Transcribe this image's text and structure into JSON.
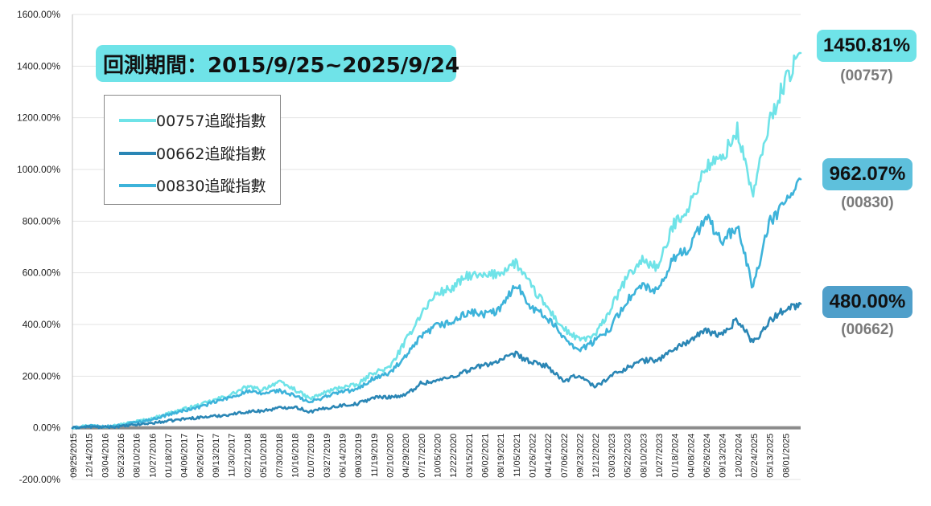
{
  "chart_data": {
    "type": "line",
    "title": "回測期間：2015/9/25~2025/9/24",
    "xlabel": "",
    "ylabel": "",
    "ylim": [
      -200,
      1600
    ],
    "yticks": [
      -200,
      0,
      200,
      400,
      600,
      800,
      1000,
      1200,
      1400,
      1600
    ],
    "ytick_labels": [
      "-200.00%",
      "0.00%",
      "200.00%",
      "400.00%",
      "600.00%",
      "800.00%",
      "1000.00%",
      "1200.00%",
      "1400.00%",
      "1600.00%"
    ],
    "categories": [
      "09/25/2015",
      "12/14/2015",
      "03/04/2016",
      "05/23/2016",
      "08/10/2016",
      "10/27/2016",
      "01/18/2017",
      "04/06/2017",
      "06/26/2017",
      "09/13/2017",
      "11/30/2017",
      "02/21/2018",
      "05/10/2018",
      "07/30/2018",
      "10/16/2018",
      "01/07/2019",
      "03/27/2019",
      "06/14/2019",
      "09/03/2019",
      "11/19/2019",
      "02/10/2020",
      "04/29/2020",
      "07/17/2020",
      "10/05/2020",
      "12/22/2020",
      "03/15/2021",
      "06/02/2021",
      "08/19/2021",
      "11/05/2021",
      "01/26/2022",
      "04/14/2022",
      "07/06/2022",
      "09/23/2022",
      "12/12/2022",
      "03/03/2023",
      "05/22/2023",
      "08/10/2023",
      "10/27/2023",
      "01/18/2024",
      "04/08/2024",
      "06/26/2024",
      "09/13/2024",
      "12/02/2024",
      "02/24/2025",
      "05/13/2025",
      "08/01/2025"
    ],
    "series": [
      {
        "name": "00757追蹤指數",
        "color": "#6fe3e8",
        "values": [
          0,
          10,
          5,
          12,
          25,
          35,
          55,
          72,
          88,
          108,
          128,
          158,
          148,
          178,
          150,
          112,
          138,
          158,
          165,
          215,
          230,
          330,
          440,
          520,
          540,
          590,
          585,
          600,
          640,
          545,
          465,
          385,
          340,
          355,
          460,
          580,
          650,
          620,
          790,
          860,
          1010,
          1040,
          1150,
          900,
          1180,
          1340
        ],
        "end": 1450.81
      },
      {
        "name": "00662追蹤指數",
        "color": "#2a86b5",
        "values": [
          0,
          4,
          2,
          5,
          12,
          18,
          26,
          34,
          40,
          45,
          52,
          62,
          66,
          76,
          82,
          62,
          76,
          87,
          93,
          117,
          120,
          125,
          172,
          182,
          198,
          223,
          243,
          260,
          285,
          252,
          240,
          178,
          205,
          158,
          200,
          232,
          260,
          263,
          305,
          338,
          375,
          358,
          420,
          330,
          410,
          462
        ],
        "end": 480.0
      },
      {
        "name": "00830追蹤指數",
        "color": "#3db3da",
        "values": [
          0,
          8,
          4,
          10,
          22,
          32,
          50,
          66,
          80,
          100,
          118,
          140,
          132,
          145,
          125,
          98,
          122,
          140,
          148,
          192,
          210,
          270,
          350,
          395,
          408,
          448,
          438,
          455,
          560,
          468,
          425,
          355,
          300,
          335,
          390,
          490,
          550,
          525,
          660,
          700,
          820,
          720,
          780,
          540,
          790,
          870
        ],
        "end": 962.07
      }
    ]
  },
  "legend": {
    "items": [
      "00757追蹤指數",
      "00662追蹤指數",
      "00830追蹤指數"
    ]
  },
  "end_labels": [
    {
      "value_text": "1450.81%",
      "code": "(00757)",
      "color": "#6fe3e8"
    },
    {
      "value_text": "962.07%",
      "code": "(00830)",
      "color": "#5ec0dc"
    },
    {
      "value_text": "480.00%",
      "code": "(00662)",
      "color": "#4f9fca"
    }
  ]
}
